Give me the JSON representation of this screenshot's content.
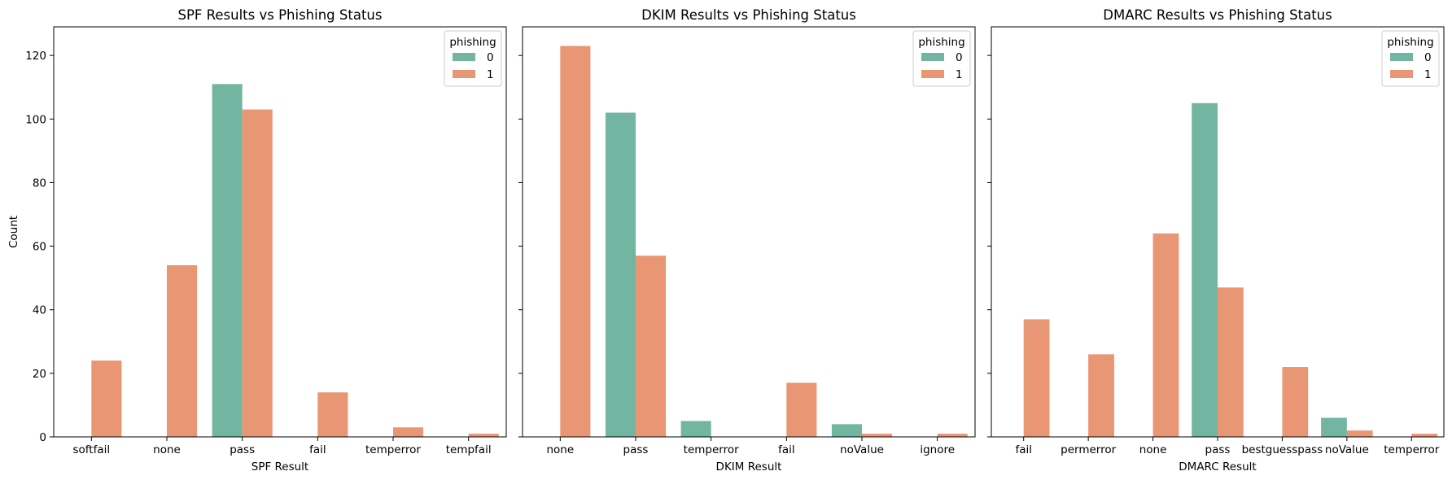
{
  "shared": {
    "ylabel": "Count",
    "yticks": [
      0,
      20,
      40,
      60,
      80,
      100,
      120
    ],
    "ylim": [
      0,
      129
    ],
    "legend": {
      "title": "phishing",
      "entries": [
        "0",
        "1"
      ],
      "placement": "upper right"
    },
    "colors": {
      "phishing_0": "#72b6a1",
      "phishing_1": "#e99675"
    }
  },
  "chart_data": [
    {
      "type": "bar",
      "title": "SPF Results vs Phishing Status",
      "xlabel": "SPF Result",
      "ylabel": "Count",
      "categories": [
        "softfail",
        "none",
        "pass",
        "fail",
        "temperror",
        "tempfail"
      ],
      "series": [
        {
          "name": "0",
          "values": [
            0,
            0,
            111,
            0,
            0,
            0
          ]
        },
        {
          "name": "1",
          "values": [
            24,
            54,
            103,
            14,
            3,
            1
          ]
        }
      ],
      "ylim": [
        0,
        129
      ],
      "grid": false,
      "legend": "upper right"
    },
    {
      "type": "bar",
      "title": "DKIM Results vs Phishing Status",
      "xlabel": "DKIM Result",
      "categories": [
        "none",
        "pass",
        "temperror",
        "fail",
        "noValue",
        "ignore"
      ],
      "series": [
        {
          "name": "0",
          "values": [
            0,
            102,
            5,
            0,
            4,
            0
          ]
        },
        {
          "name": "1",
          "values": [
            123,
            57,
            0,
            17,
            1,
            1
          ]
        }
      ],
      "ylim": [
        0,
        129
      ],
      "grid": false,
      "legend": "upper right"
    },
    {
      "type": "bar",
      "title": "DMARC Results vs Phishing Status",
      "xlabel": "DMARC Result",
      "categories": [
        "fail",
        "permerror",
        "none",
        "pass",
        "bestguesspass",
        "noValue",
        "temperror"
      ],
      "series": [
        {
          "name": "0",
          "values": [
            0,
            0,
            0,
            105,
            0,
            6,
            0
          ]
        },
        {
          "name": "1",
          "values": [
            37,
            26,
            64,
            47,
            22,
            2,
            1
          ]
        }
      ],
      "ylim": [
        0,
        129
      ],
      "grid": false,
      "legend": "upper right"
    }
  ]
}
